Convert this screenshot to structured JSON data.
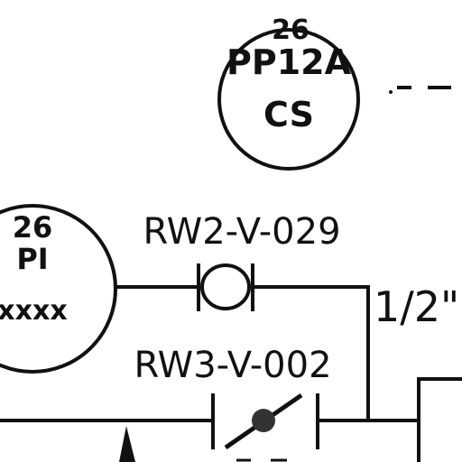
{
  "instruments": [
    {
      "tag_number": "26",
      "tag_function": "PP12A",
      "location": "CS"
    },
    {
      "tag_number": "26",
      "tag_function": "PI",
      "location": "xxxx"
    }
  ],
  "valves": [
    {
      "tag": "RW2-V-029"
    },
    {
      "tag": "RW3-V-002"
    }
  ],
  "line_size": "1/2\""
}
